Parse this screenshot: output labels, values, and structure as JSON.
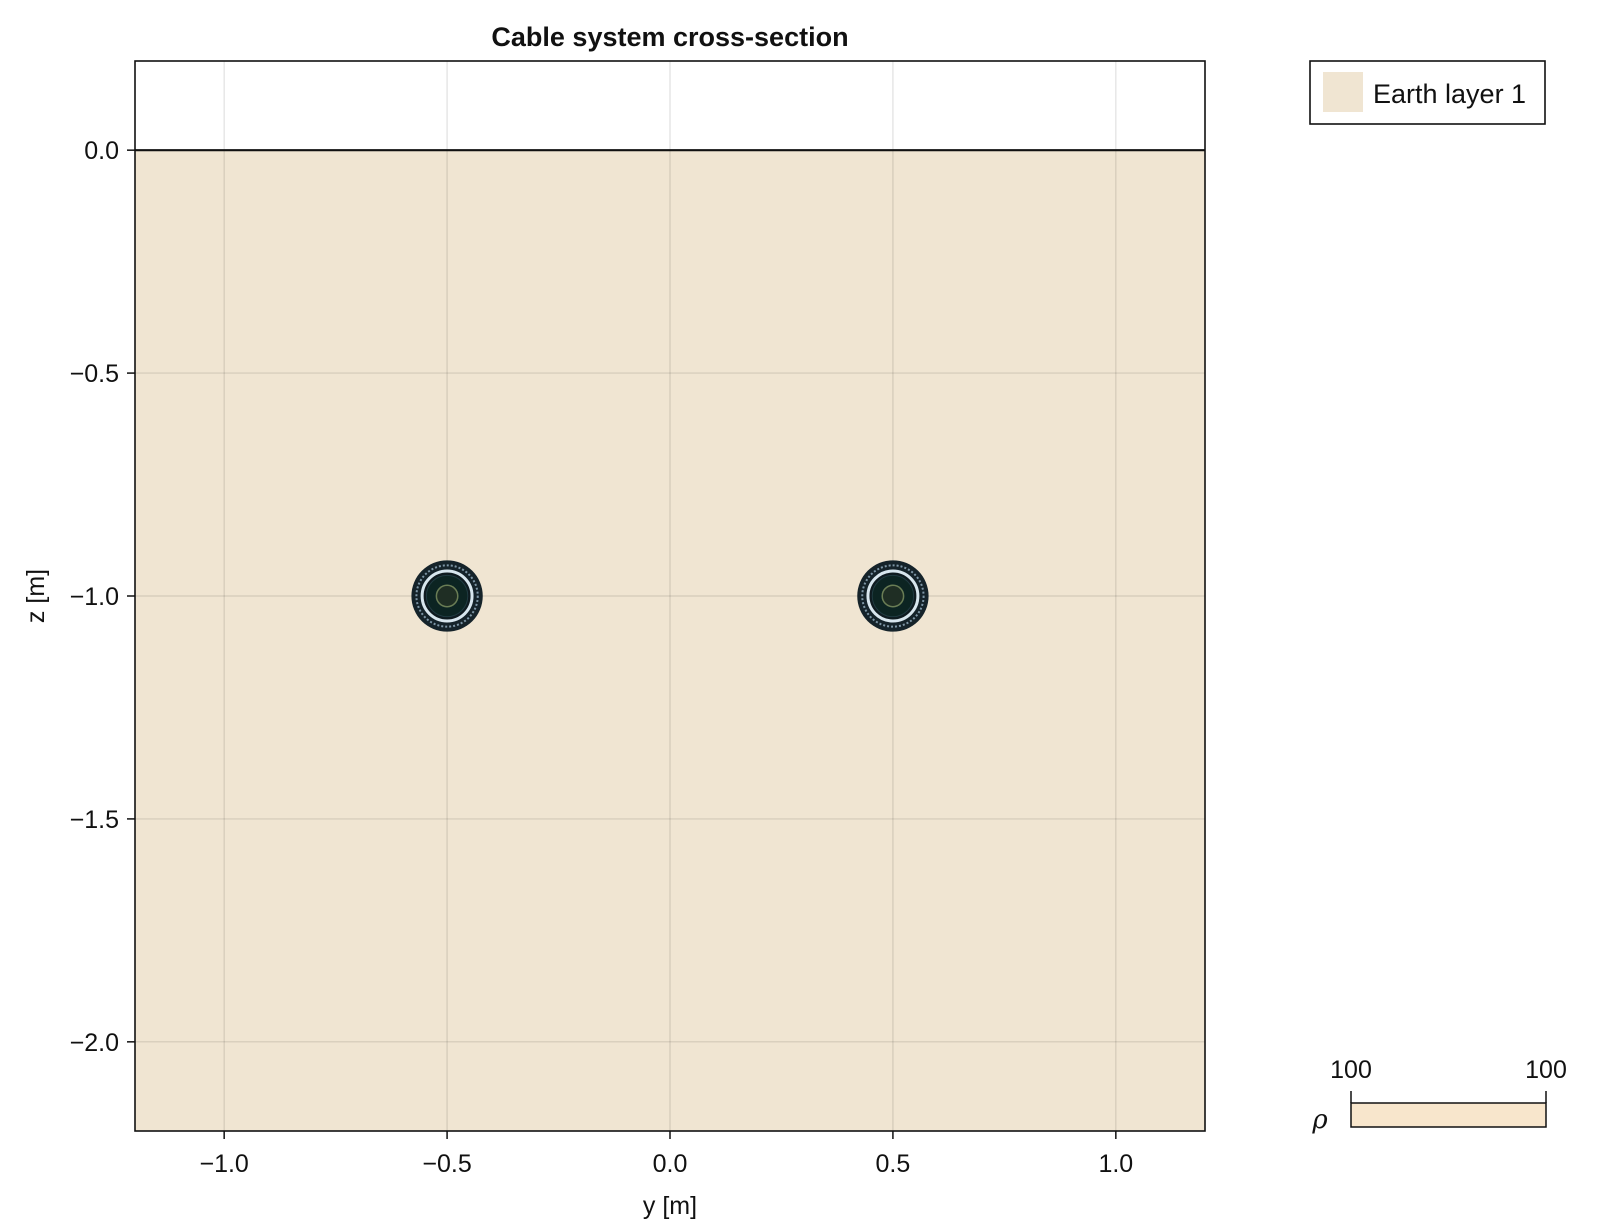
{
  "chart_data": {
    "type": "cross-section",
    "title": "Cable system cross-section",
    "xlabel": "y [m]",
    "ylabel": "z [m]",
    "xlim": [
      -1.2,
      1.2
    ],
    "ylim": [
      -2.2,
      0.2
    ],
    "xticks": [
      {
        "value": -1.0,
        "label": "−1.0"
      },
      {
        "value": -0.5,
        "label": "−0.5"
      },
      {
        "value": 0.0,
        "label": "0.0"
      },
      {
        "value": 0.5,
        "label": "0.5"
      },
      {
        "value": 1.0,
        "label": "1.0"
      }
    ],
    "yticks": [
      {
        "value": 0.0,
        "label": "0.0"
      },
      {
        "value": -0.5,
        "label": "−0.5"
      },
      {
        "value": -1.0,
        "label": "−1.0"
      },
      {
        "value": -1.5,
        "label": "−1.5"
      },
      {
        "value": -2.0,
        "label": "−2.0"
      }
    ],
    "grid": true,
    "earth_layers": [
      {
        "name": "Earth layer 1",
        "top": 0.0,
        "color": "#f0e5d2"
      }
    ],
    "cables": [
      {
        "y": -0.5,
        "z": -1.0,
        "outer_radius": 0.08
      },
      {
        "y": 0.5,
        "z": -1.0,
        "outer_radius": 0.08
      }
    ],
    "legend": {
      "position": "top-right",
      "entries": [
        "Earth layer 1"
      ]
    },
    "colorbar": {
      "label": "ρ",
      "min_label": "100",
      "max_label": "100",
      "color": "#f8e6cc"
    }
  }
}
